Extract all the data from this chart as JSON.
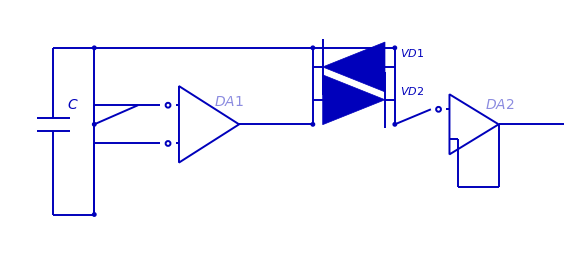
{
  "color": "#0000BB",
  "bg_color": "#FFFFFF",
  "lw": 1.4,
  "figsize": [
    5.82,
    2.76
  ],
  "dpi": 100,
  "dot_r": 0.006,
  "oc_r": 0.012
}
